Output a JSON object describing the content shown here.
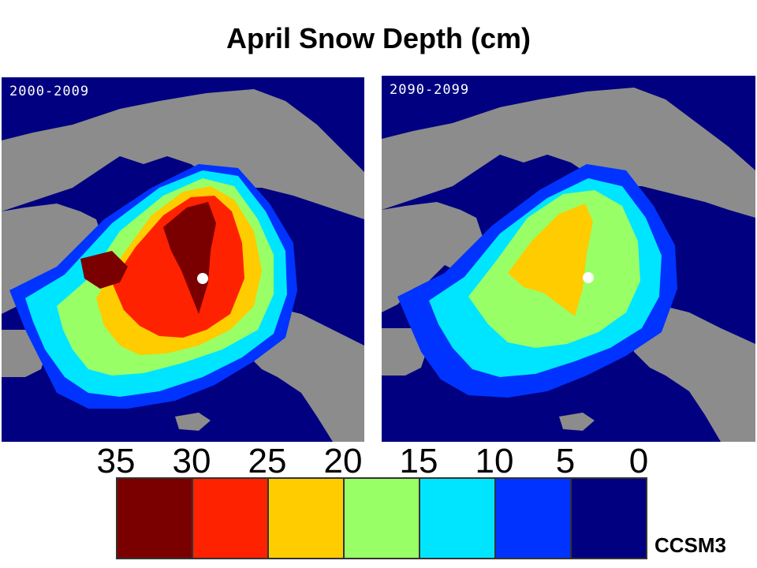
{
  "title": "April Snow Depth (cm)",
  "panels": [
    {
      "label": "2000-2009",
      "kind": "past"
    },
    {
      "label": "2090-2099",
      "kind": "future"
    }
  ],
  "colorbar": {
    "ticks": [
      "35",
      "30",
      "25",
      "20",
      "15",
      "10",
      "5",
      "0"
    ],
    "colors": [
      "#7a0000",
      "#ff2200",
      "#ffcc00",
      "#99ff66",
      "#00e5ff",
      "#0033ff",
      "#000080"
    ]
  },
  "colors": {
    "land": "#8c8c8c",
    "ocean": "#000080",
    "pole_marker": "#ffffff"
  },
  "model": "CCSM3"
}
